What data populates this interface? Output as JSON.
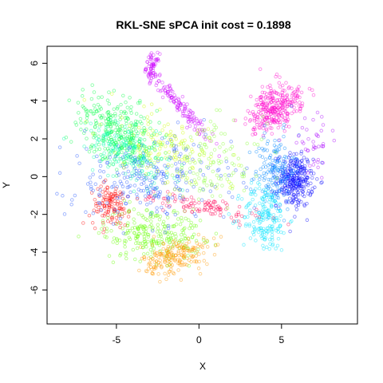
{
  "chart_data": {
    "type": "scatter",
    "title": "RKL-SNE sPCA init cost = 0.1898",
    "xlabel": "X",
    "ylabel": "Y",
    "xlim": [
      -9.2,
      9.6
    ],
    "ylim": [
      -7.8,
      6.9
    ],
    "x_ticks": [
      -5,
      0,
      5
    ],
    "x_tick_labels": [
      "-5",
      "0",
      "5"
    ],
    "y_ticks": [
      -6,
      -4,
      -2,
      0,
      2,
      4,
      6
    ],
    "y_tick_labels": [
      "-6",
      "-4",
      "-2",
      "0",
      "2",
      "4",
      "6"
    ],
    "grid": false,
    "legend": "none",
    "marker": "open circle",
    "clusters": [
      {
        "color": "#ff00cc",
        "cx": 4.6,
        "cy": 3.6,
        "sx": 0.55,
        "sy": 1.0,
        "n": 300,
        "rot": -55
      },
      {
        "color": "#cc00ff",
        "cx": -1.2,
        "cy": 3.8,
        "sx": 1.3,
        "sy": 0.18,
        "n": 120,
        "rot": -45
      },
      {
        "color": "#cc00ff",
        "cx": -2.8,
        "cy": 5.8,
        "sx": 0.2,
        "sy": 0.35,
        "n": 60,
        "rot": 0
      },
      {
        "color": "#0000ff",
        "cx": 5.8,
        "cy": -0.2,
        "sx": 0.55,
        "sy": 0.7,
        "n": 280,
        "rot": 0
      },
      {
        "color": "#0088ff",
        "cx": 4.6,
        "cy": 0.3,
        "sx": 0.6,
        "sy": 1.0,
        "n": 160,
        "rot": 0
      },
      {
        "color": "#00e5ff",
        "cx": 4.0,
        "cy": -2.2,
        "sx": 0.7,
        "sy": 0.9,
        "n": 180,
        "rot": 0
      },
      {
        "color": "#00ff44",
        "cx": -4.8,
        "cy": 2.4,
        "sx": 1.3,
        "sy": 0.8,
        "n": 300,
        "rot": -30
      },
      {
        "color": "#00ffaa",
        "cx": -4.2,
        "cy": 1.2,
        "sx": 1.3,
        "sy": 0.7,
        "n": 200,
        "rot": -30
      },
      {
        "color": "#66ff00",
        "cx": -2.8,
        "cy": -3.0,
        "sx": 1.5,
        "sy": 0.7,
        "n": 250,
        "rot": 0
      },
      {
        "color": "#ff9900",
        "cx": -1.4,
        "cy": -4.2,
        "sx": 1.0,
        "sy": 0.45,
        "n": 200,
        "rot": 10
      },
      {
        "color": "#ff0000",
        "cx": -5.4,
        "cy": -1.5,
        "sx": 0.6,
        "sy": 0.55,
        "n": 120,
        "rot": 0
      },
      {
        "color": "#ff0055",
        "cx": 0.3,
        "cy": -1.6,
        "sx": 2.0,
        "sy": 0.25,
        "n": 100,
        "rot": -8
      },
      {
        "color": "#2255ff",
        "cx": -3.0,
        "cy": -0.2,
        "sx": 2.5,
        "sy": 1.1,
        "n": 260,
        "rot": 0
      },
      {
        "color": "#ccff00",
        "cx": -2.0,
        "cy": 1.5,
        "sx": 2.0,
        "sy": 0.9,
        "n": 140,
        "rot": -20
      },
      {
        "color": "#88ff33",
        "cx": 0.8,
        "cy": 0.7,
        "sx": 1.6,
        "sy": 1.1,
        "n": 120,
        "rot": 0
      },
      {
        "color": "#aa00ff",
        "cx": 7.0,
        "cy": 1.8,
        "sx": 0.5,
        "sy": 0.6,
        "n": 40,
        "rot": 0
      }
    ]
  }
}
